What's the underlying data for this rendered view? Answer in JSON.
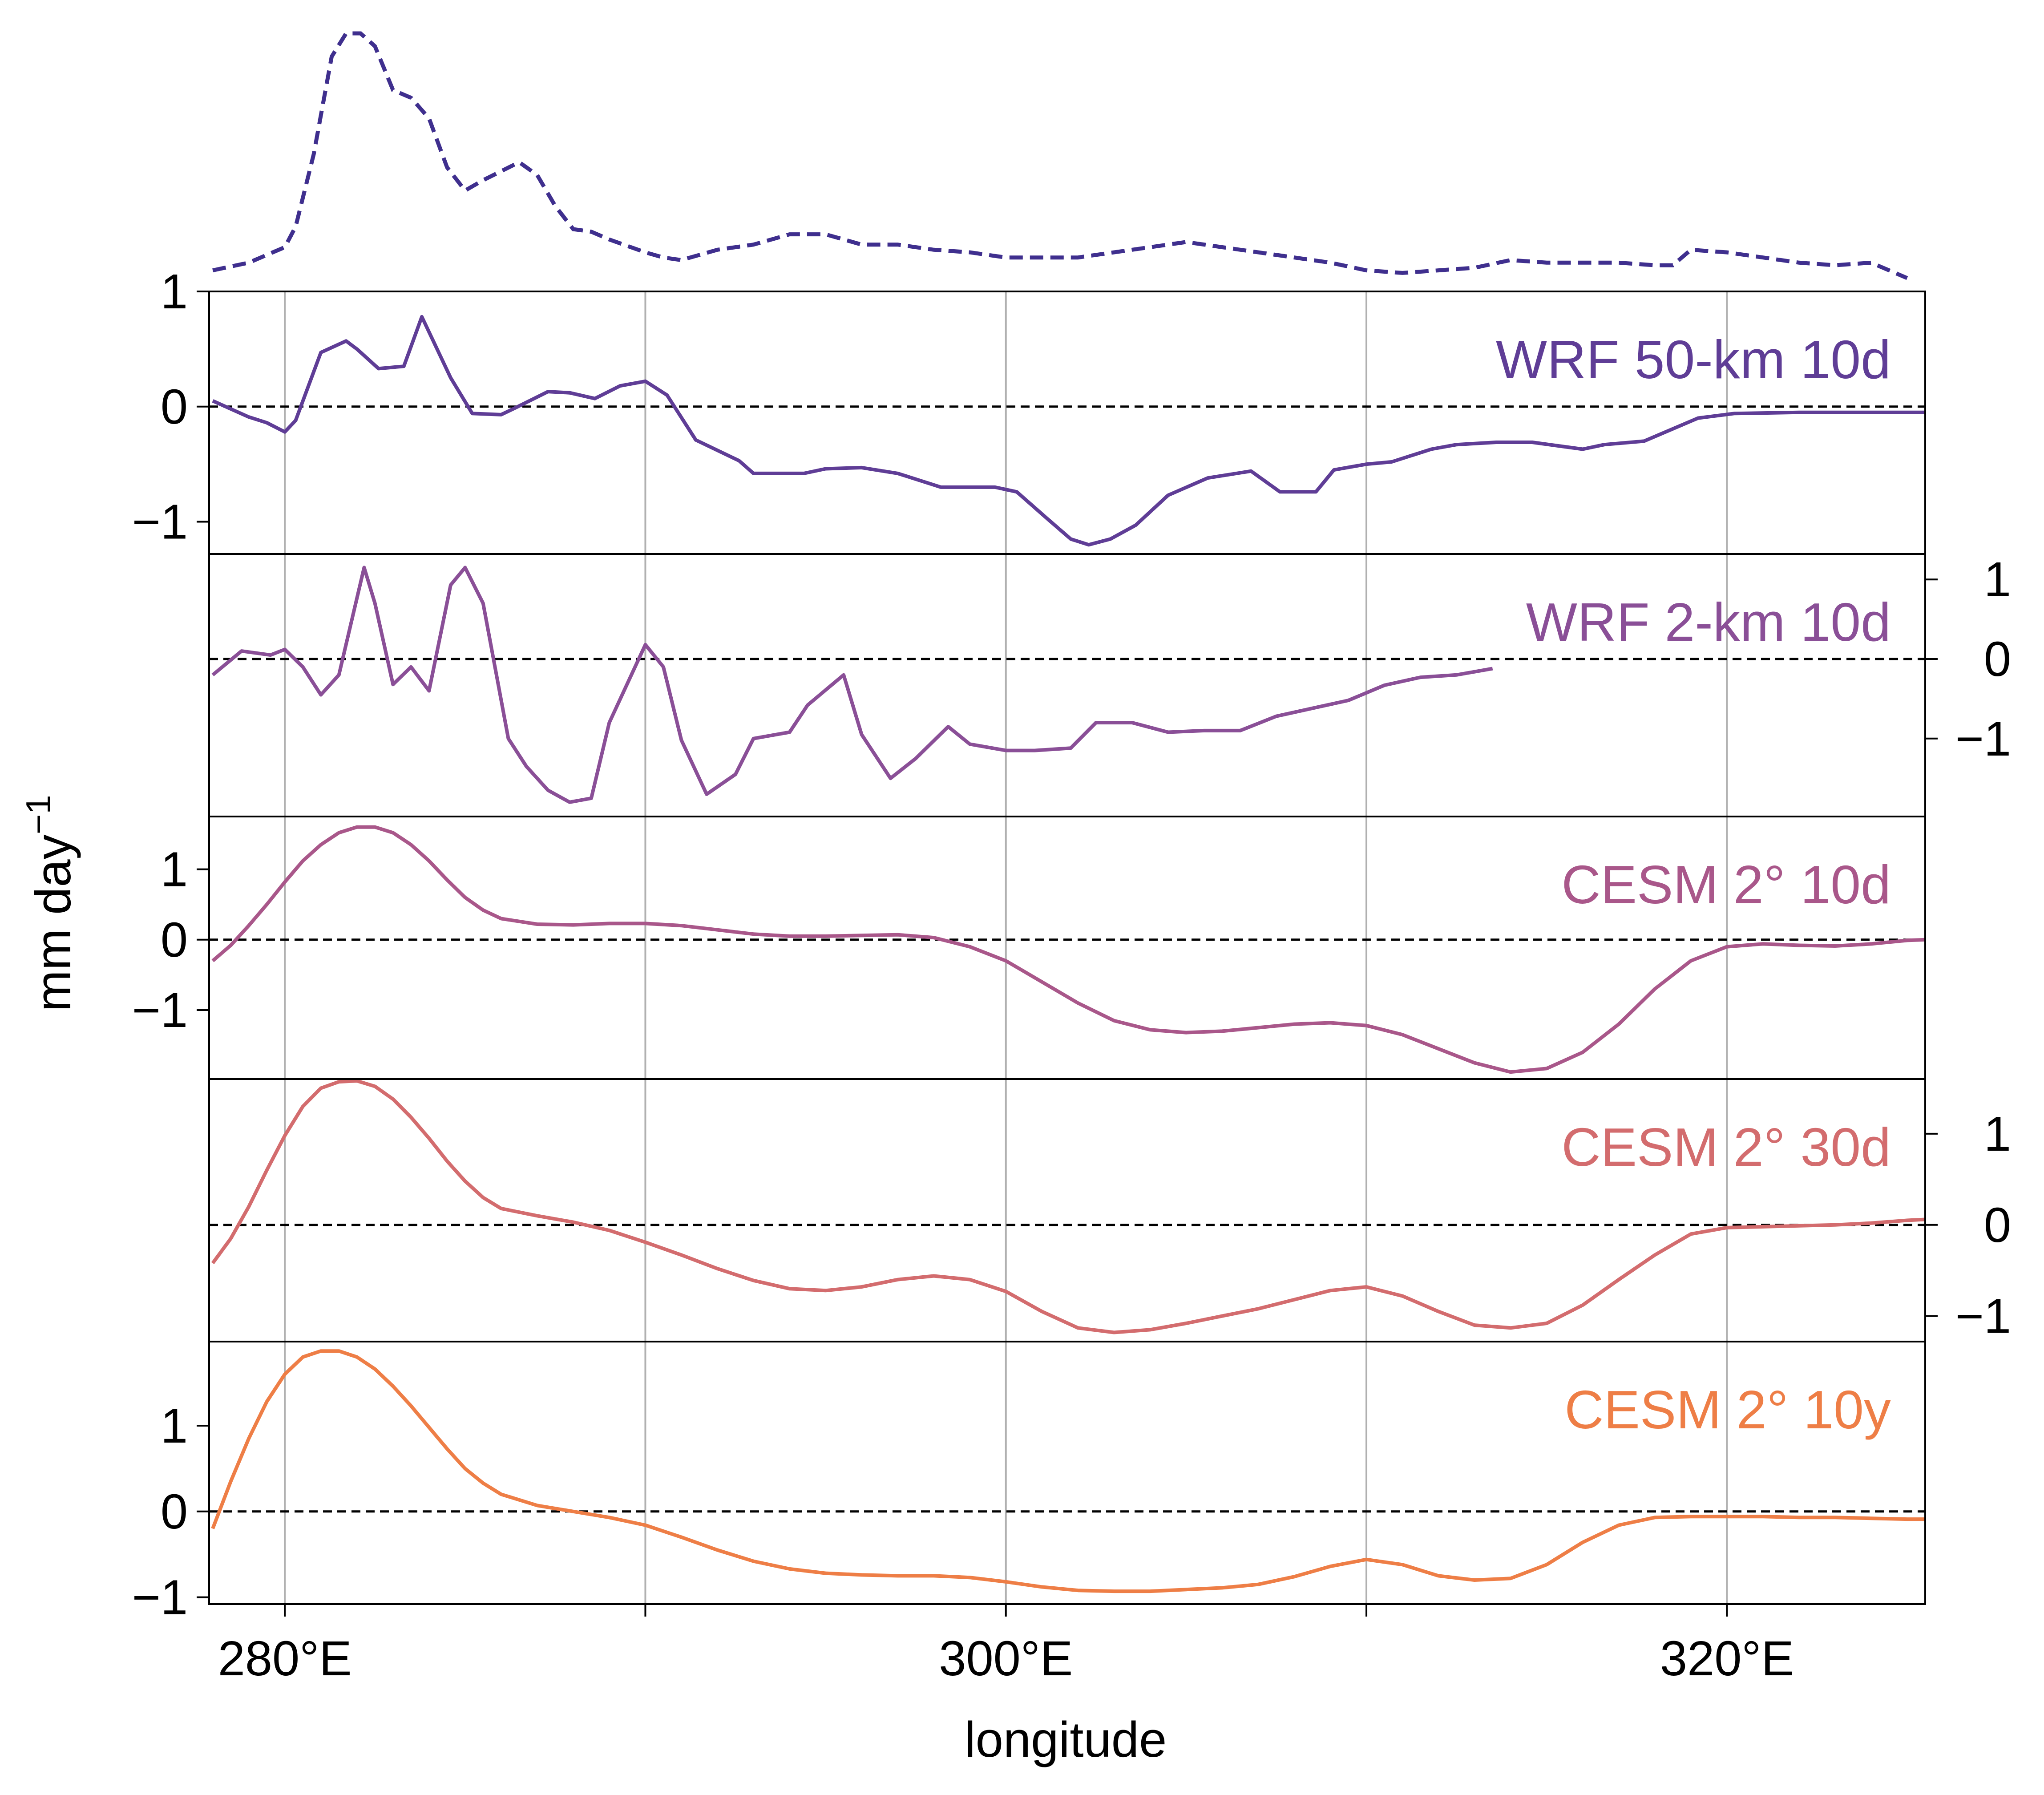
{
  "chart_data": {
    "type": "line",
    "xlabel": "longitude",
    "ylabel": "mm day",
    "ylabel_superscript": "−1",
    "xlim": [
      277.9,
      325.5
    ],
    "xticks": [
      280,
      290,
      300,
      310,
      320
    ],
    "xticklabels": [
      "280°E",
      "",
      "300°E",
      "",
      "320°E"
    ],
    "grid_x": true,
    "top_series": {
      "name": "",
      "style": "dashed",
      "color": "#3f2f8e",
      "x": [
        278,
        279,
        280,
        280.3,
        280.8,
        281.3,
        281.7,
        282.1,
        282.5,
        283,
        283.5,
        284,
        284.5,
        285,
        285.5,
        286.5,
        287,
        287.5,
        288,
        288.5,
        289,
        290,
        290.5,
        291,
        292,
        293,
        294,
        295,
        296,
        297,
        298,
        299,
        300,
        301,
        302,
        303,
        304,
        305,
        306,
        307,
        308,
        309,
        310,
        311,
        312,
        313,
        314,
        315,
        316,
        317,
        318,
        318.5,
        319,
        320,
        321,
        322,
        323,
        324,
        325
      ],
      "y": [
        0.05,
        0.08,
        0.14,
        0.22,
        0.5,
        0.88,
        0.97,
        0.97,
        0.92,
        0.75,
        0.72,
        0.64,
        0.45,
        0.36,
        0.4,
        0.47,
        0.42,
        0.3,
        0.21,
        0.2,
        0.17,
        0.12,
        0.1,
        0.09,
        0.13,
        0.15,
        0.19,
        0.19,
        0.15,
        0.15,
        0.13,
        0.12,
        0.1,
        0.1,
        0.1,
        0.12,
        0.14,
        0.16,
        0.14,
        0.12,
        0.1,
        0.08,
        0.05,
        0.04,
        0.05,
        0.06,
        0.09,
        0.08,
        0.08,
        0.08,
        0.07,
        0.07,
        0.13,
        0.12,
        0.1,
        0.08,
        0.07,
        0.08,
        0.02
      ]
    },
    "panels": [
      {
        "name": "WRF 50-km 10d",
        "color": "#5f3d96",
        "ylim": [
          -1.28,
          1.0
        ],
        "yticks": [
          1,
          0,
          -1
        ],
        "yticklabels": [
          "1",
          "0",
          "−1"
        ],
        "ytick_side": "left",
        "x": [
          278,
          279,
          279.5,
          280,
          280.3,
          281,
          281.7,
          282,
          282.6,
          283.3,
          283.8,
          284.6,
          285.2,
          286,
          286.4,
          287.3,
          287.9,
          288.6,
          289.3,
          290,
          290.6,
          291.4,
          292.6,
          293,
          294.4,
          295,
          296,
          297,
          298.2,
          298.9,
          299.7,
          300.3,
          301.1,
          301.8,
          302.3,
          302.9,
          303.6,
          304.5,
          305.6,
          306.8,
          307.6,
          308.6,
          309.1,
          310,
          310.7,
          311.8,
          312.5,
          313.6,
          314.6,
          316,
          316.6,
          317.7,
          318.3,
          319.2,
          320.2,
          322,
          323.4,
          324.9,
          325.5
        ],
        "y": [
          0.05,
          -0.09,
          -0.14,
          -0.22,
          -0.12,
          0.47,
          0.57,
          0.5,
          0.33,
          0.35,
          0.78,
          0.25,
          -0.06,
          -0.07,
          -0.01,
          0.13,
          0.12,
          0.07,
          0.18,
          0.22,
          0.1,
          -0.29,
          -0.47,
          -0.58,
          -0.58,
          -0.54,
          -0.53,
          -0.58,
          -0.7,
          -0.7,
          -0.7,
          -0.74,
          -0.96,
          -1.15,
          -1.2,
          -1.15,
          -1.03,
          -0.77,
          -0.62,
          -0.56,
          -0.74,
          -0.74,
          -0.55,
          -0.5,
          -0.48,
          -0.37,
          -0.33,
          -0.31,
          -0.31,
          -0.37,
          -0.33,
          -0.3,
          -0.22,
          -0.1,
          -0.06,
          -0.05,
          -0.05,
          -0.05,
          -0.05
        ]
      },
      {
        "name": "WRF 2-km 10d",
        "color": "#8a4f97",
        "ylim": [
          -1.98,
          1.32
        ],
        "yticks": [
          1,
          0,
          -1
        ],
        "yticklabels": [
          "1",
          "0",
          "−1"
        ],
        "ytick_side": "right",
        "x": [
          278,
          278.8,
          279.6,
          280,
          280.5,
          281,
          281.5,
          282.2,
          282.5,
          283,
          283.5,
          284,
          284.6,
          285,
          285.5,
          286.2,
          286.7,
          287.3,
          287.9,
          288.5,
          289,
          290,
          290.5,
          291,
          291.7,
          292.5,
          293,
          294,
          294.5,
          295.5,
          296,
          296.8,
          297.5,
          298.4,
          299,
          300,
          300.8,
          301.8,
          302.5,
          303.5,
          304.5,
          305.5,
          306.5,
          307.5,
          308.5,
          309.5,
          310.5,
          311.5,
          312.5,
          313.5
        ],
        "y": [
          -0.2,
          0.1,
          0.05,
          0.12,
          -0.1,
          -0.45,
          -0.2,
          1.15,
          0.7,
          -0.32,
          -0.1,
          -0.4,
          0.93,
          1.15,
          0.7,
          -1.0,
          -1.35,
          -1.65,
          -1.8,
          -1.75,
          -0.8,
          0.18,
          -0.1,
          -1.02,
          -1.7,
          -1.45,
          -1.0,
          -0.92,
          -0.58,
          -0.2,
          -0.95,
          -1.5,
          -1.25,
          -0.85,
          -1.07,
          -1.15,
          -1.15,
          -1.12,
          -0.8,
          -0.8,
          -0.92,
          -0.9,
          -0.9,
          -0.72,
          -0.62,
          -0.52,
          -0.33,
          -0.23,
          -0.2,
          -0.12
        ]
      },
      {
        "name": "CESM 2° 10d",
        "color": "#a9578a",
        "ylim": [
          -1.98,
          1.75
        ],
        "yticks": [
          1,
          0,
          -1
        ],
        "yticklabels": [
          "1",
          "0",
          "−1"
        ],
        "ytick_side": "left",
        "x": [
          278,
          278.5,
          279,
          279.5,
          280,
          280.5,
          281,
          281.5,
          282,
          282.5,
          283,
          283.5,
          284,
          284.5,
          285,
          285.5,
          286,
          287,
          288,
          289,
          290,
          291,
          292,
          293,
          294,
          295,
          296,
          297,
          298,
          299,
          300,
          301,
          302,
          303,
          304,
          305,
          306,
          307,
          308,
          309,
          310,
          311,
          312,
          313,
          314,
          315,
          316,
          317,
          318,
          319,
          320,
          321,
          322,
          323,
          324,
          325,
          325.5
        ],
        "y": [
          -0.3,
          -0.08,
          0.2,
          0.5,
          0.82,
          1.12,
          1.35,
          1.52,
          1.6,
          1.6,
          1.52,
          1.35,
          1.12,
          0.85,
          0.6,
          0.42,
          0.3,
          0.22,
          0.21,
          0.23,
          0.23,
          0.2,
          0.14,
          0.08,
          0.05,
          0.05,
          0.06,
          0.07,
          0.03,
          -0.1,
          -0.3,
          -0.6,
          -0.9,
          -1.15,
          -1.28,
          -1.32,
          -1.3,
          -1.25,
          -1.2,
          -1.18,
          -1.22,
          -1.35,
          -1.55,
          -1.75,
          -1.88,
          -1.83,
          -1.6,
          -1.2,
          -0.7,
          -0.3,
          -0.1,
          -0.06,
          -0.08,
          -0.09,
          -0.06,
          -0.01,
          0.0
        ]
      },
      {
        "name": "CESM 2° 30d",
        "color": "#d36c6e",
        "ylim": [
          -1.28,
          1.6
        ],
        "yticks": [
          1,
          0,
          -1
        ],
        "yticklabels": [
          "1",
          "0",
          "−1"
        ],
        "ytick_side": "right",
        "x": [
          278,
          278.5,
          279,
          279.5,
          280,
          280.5,
          281,
          281.5,
          282,
          282.5,
          283,
          283.5,
          284,
          284.5,
          285,
          285.5,
          286,
          287,
          288,
          289,
          290,
          291,
          292,
          293,
          294,
          295,
          296,
          297,
          298,
          299,
          300,
          301,
          302,
          303,
          304,
          305,
          306,
          307,
          308,
          309,
          310,
          311,
          312,
          313,
          314,
          315,
          316,
          317,
          318,
          319,
          320,
          321,
          322,
          323,
          324,
          325,
          325.5
        ],
        "y": [
          -0.42,
          -0.15,
          0.2,
          0.6,
          0.98,
          1.3,
          1.5,
          1.57,
          1.58,
          1.52,
          1.38,
          1.18,
          0.95,
          0.7,
          0.48,
          0.3,
          0.18,
          0.1,
          0.03,
          -0.06,
          -0.19,
          -0.33,
          -0.48,
          -0.61,
          -0.7,
          -0.72,
          -0.68,
          -0.6,
          -0.56,
          -0.6,
          -0.73,
          -0.95,
          -1.13,
          -1.18,
          -1.15,
          -1.08,
          -1.0,
          -0.92,
          -0.82,
          -0.72,
          -0.68,
          -0.78,
          -0.95,
          -1.1,
          -1.13,
          -1.08,
          -0.88,
          -0.6,
          -0.33,
          -0.1,
          -0.03,
          -0.02,
          -0.01,
          0.0,
          0.02,
          0.05,
          0.06
        ]
      },
      {
        "name": "CESM 2° 10y",
        "color": "#ee7e46",
        "ylim": [
          -1.08,
          1.98
        ],
        "yticks": [
          1,
          0,
          -1
        ],
        "yticklabels": [
          "1",
          "0",
          "−1"
        ],
        "ytick_side": "left",
        "x": [
          278,
          278.5,
          279,
          279.5,
          280,
          280.5,
          281,
          281.5,
          282,
          282.5,
          283,
          283.5,
          284,
          284.5,
          285,
          285.5,
          286,
          287,
          288,
          289,
          290,
          291,
          292,
          293,
          294,
          295,
          296,
          297,
          298,
          299,
          300,
          301,
          302,
          303,
          304,
          305,
          306,
          307,
          308,
          309,
          310,
          311,
          312,
          313,
          314,
          315,
          316,
          317,
          318,
          319,
          320,
          321,
          322,
          323,
          324,
          325,
          325.5
        ],
        "y": [
          -0.2,
          0.35,
          0.85,
          1.28,
          1.6,
          1.8,
          1.87,
          1.87,
          1.8,
          1.66,
          1.46,
          1.23,
          0.98,
          0.73,
          0.5,
          0.33,
          0.2,
          0.07,
          0.0,
          -0.07,
          -0.16,
          -0.3,
          -0.45,
          -0.58,
          -0.67,
          -0.72,
          -0.74,
          -0.75,
          -0.75,
          -0.77,
          -0.82,
          -0.88,
          -0.92,
          -0.93,
          -0.93,
          -0.91,
          -0.89,
          -0.85,
          -0.76,
          -0.64,
          -0.56,
          -0.62,
          -0.75,
          -0.8,
          -0.78,
          -0.62,
          -0.36,
          -0.16,
          -0.07,
          -0.06,
          -0.06,
          -0.06,
          -0.07,
          -0.07,
          -0.08,
          -0.09,
          -0.09
        ]
      }
    ]
  }
}
